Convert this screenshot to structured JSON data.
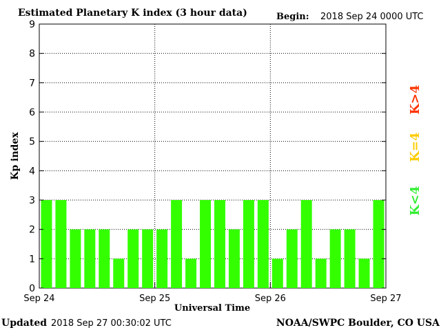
{
  "header": {
    "title": "Estimated Planetary K index (3 hour data)",
    "begin_label": "Begin:",
    "begin_value": "2018 Sep 24 0000 UTC"
  },
  "footer": {
    "updated_label": "Updated",
    "updated_value": "2018 Sep 27 00:30:02 UTC",
    "source": "NOAA/SWPC Boulder, CO USA"
  },
  "legend": {
    "items": [
      {
        "label": "K>4",
        "color": "#ff3300"
      },
      {
        "label": "K=4",
        "color": "#ffcc00"
      },
      {
        "label": "K<4",
        "color": "#33ee33"
      }
    ]
  },
  "chart_data": {
    "type": "bar",
    "title": "Estimated Planetary K index (3 hour data)",
    "xlabel": "Universal Time",
    "ylabel": "Kp index",
    "ylim": [
      0,
      9
    ],
    "yticks": [
      0,
      1,
      2,
      3,
      4,
      5,
      6,
      7,
      8,
      9
    ],
    "xtick_labels": [
      "Sep 24",
      "Sep 25",
      "Sep 26",
      "Sep 27"
    ],
    "grid": true,
    "bar_color": "#33ff00",
    "values": [
      3,
      3,
      2,
      2,
      2,
      1,
      2,
      2,
      2,
      3,
      1,
      3,
      3,
      2,
      3,
      3,
      1,
      2,
      3,
      1,
      2,
      2,
      1,
      3
    ]
  }
}
